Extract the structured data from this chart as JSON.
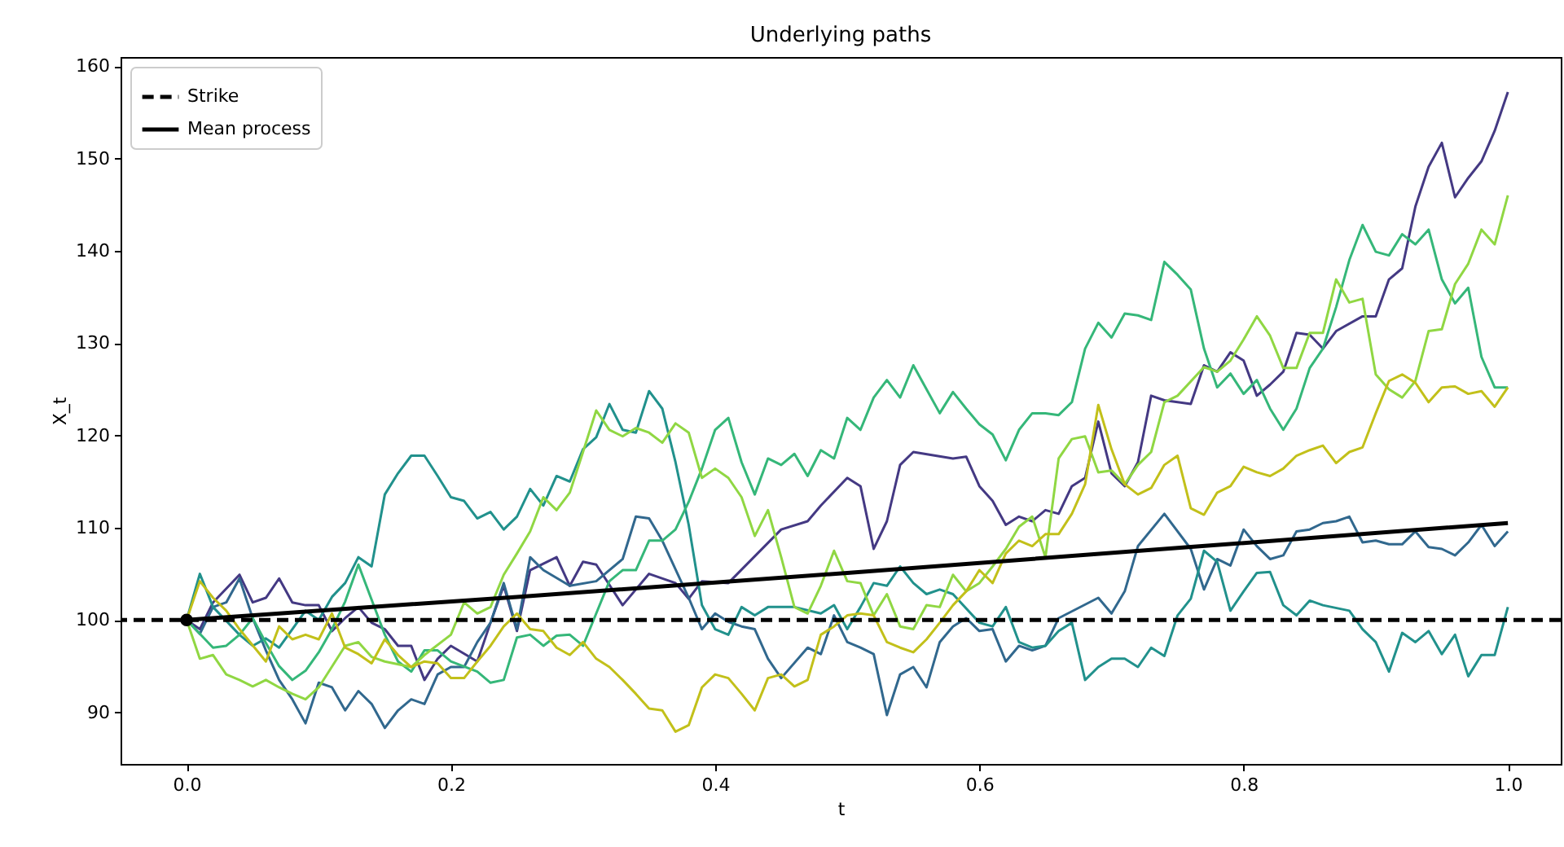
{
  "chart_data": {
    "type": "line",
    "title": "Underlying paths",
    "xlabel": "t",
    "ylabel": "X_t",
    "xlim": [
      -0.05,
      1.04
    ],
    "ylim": [
      84.4,
      161.0
    ],
    "xticks": [
      {
        "value": 0,
        "label": "0.0"
      },
      {
        "value": 0.2,
        "label": "0.2"
      },
      {
        "value": 0.4,
        "label": "0.4"
      },
      {
        "value": 0.6,
        "label": "0.6"
      },
      {
        "value": 0.8,
        "label": "0.8"
      },
      {
        "value": 1,
        "label": "1.0"
      }
    ],
    "yticks": [
      90,
      100,
      110,
      120,
      130,
      140,
      150,
      160
    ],
    "grid": false,
    "legend": "top left",
    "line_style": "solid",
    "series": [
      {
        "color": "#443983",
        "x": [
          0,
          0.01,
          0.02,
          0.04,
          0.05,
          0.06,
          0.07,
          0.08,
          0.09,
          0.1,
          0.11,
          0.12,
          0.13,
          0.14,
          0.15,
          0.16,
          0.17,
          0.18,
          0.19,
          0.2,
          0.22,
          0.23,
          0.24,
          0.25,
          0.26,
          0.28,
          0.29,
          0.3,
          0.31,
          0.33,
          0.35,
          0.37,
          0.38,
          0.39,
          0.41,
          0.45,
          0.47,
          0.48,
          0.5,
          0.51,
          0.52,
          0.53,
          0.54,
          0.55,
          0.58,
          0.59,
          0.6,
          0.61,
          0.62,
          0.63,
          0.64,
          0.65,
          0.66,
          0.67,
          0.68,
          0.69,
          0.7,
          0.71,
          0.72,
          0.73,
          0.74,
          0.76,
          0.77,
          0.78,
          0.79,
          0.8,
          0.81,
          0.82,
          0.83,
          0.84,
          0.85,
          0.86,
          0.87,
          0.89,
          0.9,
          0.91,
          0.92,
          0.93,
          0.94,
          0.95,
          0.96,
          0.97,
          0.98,
          0.99,
          1.0
        ],
        "values": [
          100,
          99,
          101.9,
          104.9,
          101.9,
          102.4,
          104.5,
          101.9,
          101.6,
          101.6,
          98.8,
          100.2,
          101.4,
          99.7,
          99,
          97.2,
          97.2,
          93.5,
          95.8,
          97.2,
          95.5,
          99.7,
          103.7,
          98.8,
          105.4,
          106.8,
          103.7,
          106.3,
          106,
          101.6,
          105,
          104,
          102.3,
          104.2,
          104,
          109.8,
          110.7,
          112.4,
          115.4,
          114.5,
          107.7,
          110.7,
          116.8,
          118.2,
          117.5,
          117.7,
          114.5,
          112.9,
          110.3,
          111.2,
          110.7,
          111.9,
          111.5,
          114.5,
          115.4,
          121.5,
          115.9,
          114.5,
          117.1,
          124.3,
          123.8,
          123.4,
          127.6,
          126.9,
          129,
          128.1,
          124.3,
          125.5,
          126.9,
          131.1,
          130.9,
          129.4,
          131.3,
          132.9,
          132.9,
          136.9,
          138.1,
          144.8,
          149.1,
          151.7,
          145.8,
          147.9,
          149.7,
          153,
          157.2
        ]
      },
      {
        "color": "#31688e",
        "x": [
          0,
          0.01,
          0.02,
          0.03,
          0.04,
          0.05,
          0.06,
          0.07,
          0.08,
          0.09,
          0.1,
          0.11,
          0.12,
          0.13,
          0.14,
          0.15,
          0.16,
          0.17,
          0.18,
          0.19,
          0.2,
          0.21,
          0.22,
          0.23,
          0.24,
          0.25,
          0.26,
          0.27,
          0.29,
          0.31,
          0.33,
          0.34,
          0.35,
          0.36,
          0.38,
          0.39,
          0.4,
          0.41,
          0.42,
          0.43,
          0.44,
          0.45,
          0.47,
          0.48,
          0.49,
          0.5,
          0.51,
          0.52,
          0.53,
          0.54,
          0.55,
          0.56,
          0.57,
          0.58,
          0.59,
          0.6,
          0.61,
          0.62,
          0.63,
          0.64,
          0.65,
          0.66,
          0.69,
          0.7,
          0.71,
          0.72,
          0.74,
          0.76,
          0.77,
          0.78,
          0.79,
          0.8,
          0.81,
          0.82,
          0.83,
          0.84,
          0.85,
          0.86,
          0.87,
          0.88,
          0.89,
          0.9,
          0.91,
          0.92,
          0.93,
          0.94,
          0.95,
          0.96,
          0.97,
          0.98,
          0.99,
          1.0
        ],
        "values": [
          100,
          98.5,
          101.4,
          101.9,
          104.5,
          100.2,
          96.7,
          93.5,
          91.4,
          88.8,
          93.2,
          92.7,
          90.2,
          92.3,
          90.9,
          88.3,
          90.2,
          91.4,
          90.9,
          94.1,
          94.9,
          94.9,
          97.6,
          99.7,
          104,
          99,
          106.8,
          105.4,
          103.7,
          104.2,
          106.6,
          111.2,
          111,
          108.6,
          102.4,
          99,
          100.7,
          99.8,
          99.3,
          99,
          95.8,
          93.7,
          97,
          96.3,
          100.5,
          97.6,
          97,
          96.3,
          89.7,
          94.1,
          94.9,
          92.7,
          97.6,
          99.3,
          100.2,
          98.8,
          99,
          95.5,
          97.2,
          96.7,
          97.2,
          100.2,
          102.4,
          100.7,
          103.1,
          108,
          111.5,
          107.7,
          103.3,
          106.6,
          105.9,
          109.8,
          108,
          106.6,
          107,
          109.6,
          109.8,
          110.5,
          110.7,
          111.2,
          108.4,
          108.6,
          108.2,
          108.2,
          109.6,
          107.9,
          107.7,
          107,
          108.4,
          110.3,
          108,
          109.6
        ]
      },
      {
        "color": "#21918c",
        "x": [
          0,
          0.01,
          0.02,
          0.04,
          0.05,
          0.06,
          0.07,
          0.08,
          0.09,
          0.1,
          0.11,
          0.12,
          0.13,
          0.14,
          0.15,
          0.16,
          0.17,
          0.18,
          0.19,
          0.2,
          0.21,
          0.22,
          0.23,
          0.24,
          0.25,
          0.26,
          0.27,
          0.28,
          0.29,
          0.3,
          0.31,
          0.32,
          0.33,
          0.34,
          0.35,
          0.36,
          0.37,
          0.38,
          0.39,
          0.4,
          0.41,
          0.42,
          0.43,
          0.44,
          0.46,
          0.48,
          0.49,
          0.5,
          0.51,
          0.52,
          0.53,
          0.54,
          0.55,
          0.56,
          0.57,
          0.58,
          0.6,
          0.61,
          0.62,
          0.63,
          0.64,
          0.65,
          0.66,
          0.67,
          0.68,
          0.69,
          0.7,
          0.71,
          0.72,
          0.73,
          0.74,
          0.75,
          0.76,
          0.77,
          0.78,
          0.79,
          0.8,
          0.81,
          0.82,
          0.83,
          0.84,
          0.85,
          0.86,
          0.88,
          0.89,
          0.9,
          0.91,
          0.92,
          0.93,
          0.94,
          0.95,
          0.96,
          0.97,
          0.98,
          0.99,
          1.0
        ],
        "values": [
          100,
          105,
          101.4,
          98.4,
          97.2,
          98,
          97,
          99,
          101,
          100,
          102.5,
          104,
          106.8,
          105.8,
          113.6,
          115.9,
          117.8,
          117.8,
          115.6,
          113.3,
          112.9,
          111,
          111.7,
          109.8,
          111.2,
          114.2,
          112.4,
          115.6,
          115,
          118.5,
          119.8,
          123.4,
          120.6,
          120.3,
          124.8,
          122.9,
          117.1,
          110.3,
          101.6,
          99,
          98.4,
          101.4,
          100.5,
          101.4,
          101.4,
          100.7,
          101.6,
          99,
          101.4,
          104,
          103.7,
          105.8,
          104,
          102.8,
          103.3,
          102.8,
          99.7,
          99.3,
          101.4,
          97.6,
          97,
          97.2,
          98.8,
          99.7,
          93.5,
          94.9,
          95.8,
          95.8,
          94.9,
          97,
          96.1,
          100.5,
          102.3,
          107.5,
          106.3,
          101,
          103.1,
          105.1,
          105.2,
          101.6,
          100.5,
          102.1,
          101.6,
          101,
          99,
          97.6,
          94.4,
          98.6,
          97.6,
          98.8,
          96.3,
          98.4,
          93.9,
          96.2,
          96.2,
          101.4
        ]
      },
      {
        "color": "#35b779",
        "x": [
          0,
          0.02,
          0.03,
          0.04,
          0.05,
          0.06,
          0.07,
          0.08,
          0.09,
          0.1,
          0.11,
          0.12,
          0.13,
          0.15,
          0.16,
          0.17,
          0.18,
          0.19,
          0.2,
          0.22,
          0.23,
          0.24,
          0.25,
          0.26,
          0.27,
          0.28,
          0.29,
          0.3,
          0.31,
          0.32,
          0.33,
          0.34,
          0.35,
          0.36,
          0.37,
          0.38,
          0.39,
          0.4,
          0.41,
          0.42,
          0.43,
          0.44,
          0.45,
          0.46,
          0.47,
          0.48,
          0.49,
          0.5,
          0.51,
          0.52,
          0.53,
          0.54,
          0.55,
          0.56,
          0.57,
          0.58,
          0.59,
          0.6,
          0.61,
          0.62,
          0.63,
          0.64,
          0.65,
          0.66,
          0.67,
          0.68,
          0.69,
          0.7,
          0.71,
          0.72,
          0.73,
          0.74,
          0.75,
          0.76,
          0.77,
          0.78,
          0.79,
          0.8,
          0.81,
          0.82,
          0.83,
          0.84,
          0.85,
          0.86,
          0.87,
          0.88,
          0.89,
          0.9,
          0.91,
          0.92,
          0.93,
          0.94,
          0.95,
          0.96,
          0.97,
          0.98,
          0.99,
          1.0
        ],
        "values": [
          100,
          97,
          97.2,
          98.4,
          100.2,
          97.5,
          95,
          93.5,
          94.5,
          96.5,
          99,
          102,
          106,
          98.4,
          95.5,
          94.4,
          96.7,
          96.7,
          95.5,
          94.4,
          93.2,
          93.5,
          98.1,
          98.4,
          97.2,
          98.3,
          98.4,
          97.2,
          100.7,
          104.2,
          105.4,
          105.4,
          108.6,
          108.6,
          109.8,
          112.8,
          116.4,
          120.6,
          121.9,
          117.1,
          113.6,
          117.5,
          116.8,
          118,
          115.6,
          118.4,
          117.5,
          121.9,
          120.6,
          124.1,
          126,
          124.1,
          127.6,
          125,
          122.4,
          124.7,
          122.9,
          121.2,
          120.1,
          117.3,
          120.6,
          122.4,
          122.4,
          122.2,
          123.6,
          129.4,
          132.2,
          130.6,
          133.2,
          133,
          132.5,
          138.8,
          137.4,
          135.8,
          129.4,
          125.2,
          126.7,
          124.5,
          126,
          122.9,
          120.6,
          122.9,
          127.3,
          129.4,
          133.9,
          139,
          142.8,
          139.9,
          139.5,
          141.8,
          140.7,
          142.3,
          136.9,
          134.3,
          136,
          128.5,
          125.2,
          125.2
        ]
      },
      {
        "color": "#90d743",
        "x": [
          0,
          0.01,
          0.02,
          0.03,
          0.04,
          0.05,
          0.06,
          0.07,
          0.08,
          0.09,
          0.1,
          0.12,
          0.13,
          0.14,
          0.15,
          0.17,
          0.18,
          0.2,
          0.21,
          0.22,
          0.23,
          0.24,
          0.25,
          0.26,
          0.27,
          0.28,
          0.29,
          0.3,
          0.31,
          0.32,
          0.33,
          0.34,
          0.35,
          0.36,
          0.37,
          0.38,
          0.39,
          0.4,
          0.41,
          0.42,
          0.43,
          0.44,
          0.45,
          0.46,
          0.47,
          0.48,
          0.49,
          0.5,
          0.51,
          0.52,
          0.53,
          0.54,
          0.55,
          0.56,
          0.57,
          0.58,
          0.59,
          0.6,
          0.61,
          0.62,
          0.63,
          0.64,
          0.65,
          0.66,
          0.67,
          0.68,
          0.69,
          0.7,
          0.71,
          0.72,
          0.73,
          0.74,
          0.75,
          0.77,
          0.78,
          0.79,
          0.8,
          0.81,
          0.82,
          0.83,
          0.84,
          0.85,
          0.86,
          0.87,
          0.88,
          0.89,
          0.9,
          0.91,
          0.92,
          0.93,
          0.94,
          0.95,
          0.96,
          0.97,
          0.98,
          0.99,
          1.0
        ],
        "values": [
          100,
          95.8,
          96.2,
          94.1,
          93.5,
          92.8,
          93.5,
          92.7,
          92,
          91.4,
          92.7,
          97.2,
          97.6,
          96,
          95.5,
          94.9,
          96.2,
          98.4,
          101.9,
          100.7,
          101.4,
          104.9,
          107.2,
          109.6,
          113.3,
          111.9,
          113.8,
          118.2,
          122.7,
          120.6,
          119.9,
          120.8,
          120.3,
          119.2,
          121.3,
          120.3,
          115.4,
          116.4,
          115.4,
          113.3,
          109.1,
          111.9,
          106.8,
          101.4,
          100.7,
          103.7,
          107.5,
          104.2,
          104,
          100.5,
          102.8,
          99.3,
          99,
          101.6,
          101.4,
          104.9,
          103.1,
          104,
          105.8,
          107.7,
          110.1,
          111.2,
          106.8,
          117.5,
          119.6,
          119.9,
          116,
          116.2,
          114.7,
          116.8,
          118.2,
          123.6,
          124.3,
          127.4,
          126.9,
          128.1,
          130.4,
          132.9,
          130.8,
          127.3,
          127.3,
          131.1,
          131.1,
          136.9,
          134.4,
          134.8,
          126.6,
          125,
          124.1,
          125.9,
          131.3,
          131.5,
          136.4,
          138.6,
          142.3,
          140.7,
          146
        ]
      },
      {
        "color": "#c2c01a",
        "x": [
          0,
          0.01,
          0.02,
          0.03,
          0.04,
          0.06,
          0.07,
          0.08,
          0.09,
          0.1,
          0.11,
          0.12,
          0.13,
          0.14,
          0.15,
          0.16,
          0.17,
          0.18,
          0.19,
          0.2,
          0.21,
          0.22,
          0.23,
          0.24,
          0.25,
          0.26,
          0.27,
          0.28,
          0.29,
          0.3,
          0.31,
          0.32,
          0.33,
          0.34,
          0.35,
          0.36,
          0.37,
          0.38,
          0.39,
          0.4,
          0.41,
          0.42,
          0.43,
          0.44,
          0.45,
          0.46,
          0.47,
          0.48,
          0.49,
          0.5,
          0.51,
          0.52,
          0.53,
          0.54,
          0.55,
          0.56,
          0.57,
          0.58,
          0.59,
          0.6,
          0.61,
          0.62,
          0.63,
          0.64,
          0.65,
          0.66,
          0.67,
          0.68,
          0.69,
          0.7,
          0.71,
          0.72,
          0.73,
          0.74,
          0.75,
          0.76,
          0.77,
          0.78,
          0.79,
          0.8,
          0.81,
          0.82,
          0.83,
          0.84,
          0.85,
          0.86,
          0.87,
          0.88,
          0.89,
          0.9,
          0.91,
          0.92,
          0.93,
          0.94,
          0.95,
          0.96,
          0.97,
          0.98,
          0.99,
          1.0
        ],
        "values": [
          100,
          104.2,
          102.4,
          101,
          99,
          95.5,
          99.3,
          97.9,
          98.4,
          97.9,
          100.7,
          97,
          96.3,
          95.3,
          97.9,
          96.2,
          94.9,
          95.5,
          95.3,
          93.7,
          93.7,
          95.5,
          97.2,
          99.3,
          100.7,
          99,
          98.8,
          97,
          96.2,
          97.6,
          95.8,
          94.9,
          93.5,
          92,
          90.4,
          90.2,
          87.9,
          88.6,
          92.7,
          94.1,
          93.7,
          92,
          90.2,
          93.7,
          94.1,
          92.8,
          93.5,
          98.4,
          99.3,
          100.5,
          100.7,
          100.5,
          97.6,
          97,
          96.5,
          97.9,
          99.7,
          101.6,
          103.1,
          105.4,
          104,
          107.2,
          108.6,
          108,
          109.3,
          109.3,
          111.5,
          114.7,
          123.3,
          118.5,
          114.7,
          113.6,
          114.3,
          116.8,
          117.8,
          112.1,
          111.4,
          113.8,
          114.5,
          116.6,
          116,
          115.6,
          116.4,
          117.8,
          118.4,
          118.9,
          117,
          118.2,
          118.7,
          122.4,
          125.9,
          126.6,
          125.7,
          123.6,
          125.2,
          125.3,
          124.5,
          124.8,
          123.1,
          125.2
        ]
      },
      {
        "type": "scatter",
        "marker": "circle",
        "color": "#000000",
        "x": [
          0
        ],
        "values": [
          100
        ]
      },
      {
        "name": "Mean process",
        "color": "#000000",
        "x": [
          0,
          0.25,
          0.5,
          0.75,
          1
        ],
        "values": [
          100,
          102.5,
          105.1,
          107.8,
          110.5
        ]
      }
    ],
    "ref_lines": [
      {
        "axis": "y",
        "value": 100,
        "label": "Strike",
        "color": "#000000",
        "line_style": "dashed"
      }
    ]
  }
}
